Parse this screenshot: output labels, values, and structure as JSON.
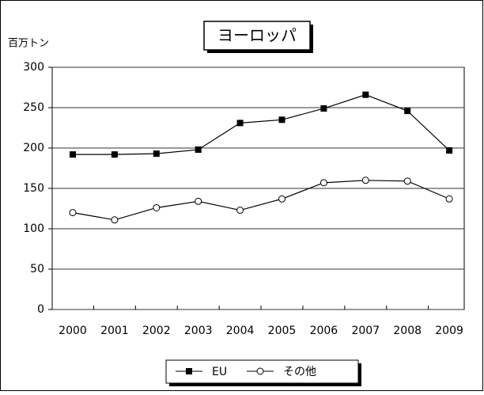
{
  "chart_data": {
    "type": "line",
    "title": "ヨーロッパ",
    "y_label": "百万トン",
    "categories": [
      "2000",
      "2001",
      "2002",
      "2003",
      "2004",
      "2005",
      "2006",
      "2007",
      "2008",
      "2009"
    ],
    "series": [
      {
        "name": "EU",
        "color": "#000000",
        "marker": "square",
        "values": [
          192,
          192,
          193,
          198,
          231,
          235,
          249,
          266,
          246,
          197
        ]
      },
      {
        "name": "その他",
        "color": "#000000",
        "marker": "circle",
        "values": [
          120,
          111,
          126,
          134,
          123,
          137,
          157,
          160,
          159,
          137
        ]
      }
    ],
    "ylim": [
      0,
      300
    ],
    "yticks": [
      0,
      50,
      100,
      150,
      200,
      250,
      300
    ],
    "grid": true,
    "legend": "bottom"
  }
}
